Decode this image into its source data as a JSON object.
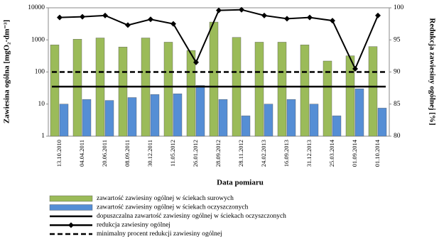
{
  "chart_data": {
    "type": "bar-line",
    "x_label": "Data pomiaru",
    "y_label": "Zawiesina ogólna [mgO₂·dm⁻³]",
    "y2_label": "Redukcja zawiesiny ogólnej [%]",
    "categories": [
      "13.10.2010",
      "04.04.2011",
      "20.06.2011",
      "08.09.2011",
      "30.12.2011",
      "11.05.2012",
      "26.01.2012",
      "28.09.2012",
      "28.11.2012",
      "24.02.2013",
      "16.09.2013",
      "31.12.2013",
      "25.03.2014",
      "01.09.2014",
      "01.10.2014"
    ],
    "log_y": true,
    "ylim": [
      1,
      10000
    ],
    "yticks": [
      1,
      10,
      100,
      1000,
      10000
    ],
    "y2lim": [
      80,
      100
    ],
    "y2ticks": [
      80,
      85,
      90,
      95,
      100
    ],
    "series": [
      {
        "name": "zawartość zawiesiny ogólnej w ściekach surowych",
        "type": "bar",
        "color": "#9bbb59",
        "values": [
          700,
          1050,
          1150,
          600,
          1150,
          850,
          470,
          3600,
          1200,
          850,
          850,
          700,
          220,
          320,
          620
        ]
      },
      {
        "name": "zawartość zawiesiny ogólnej w ściekach oczyszczonych",
        "type": "bar",
        "color": "#558ed5",
        "values": [
          10,
          14,
          13,
          16,
          20,
          21,
          38,
          14,
          4.3,
          10,
          14,
          10,
          4.3,
          30,
          7.5
        ]
      },
      {
        "name": "dopuszczalna zawartość zawiesiny ogólnej w ściekach oczyszczonych",
        "type": "hline",
        "color": "#000000",
        "dashed": false,
        "value": 35
      },
      {
        "name": "redukcja zawiesiny ogólnej",
        "type": "line",
        "axis": "y2",
        "color": "#000000",
        "marker": "diamond",
        "values": [
          98.5,
          98.6,
          98.8,
          97.3,
          98.2,
          97.5,
          91.5,
          99.6,
          99.7,
          98.8,
          98.3,
          98.5,
          98.0,
          90.5,
          98.8
        ]
      },
      {
        "name": "minimalny procent redukcji zawiesiny ogólnej",
        "type": "hline",
        "axis": "y2",
        "color": "#000000",
        "dashed": true,
        "value": 90
      }
    ]
  }
}
